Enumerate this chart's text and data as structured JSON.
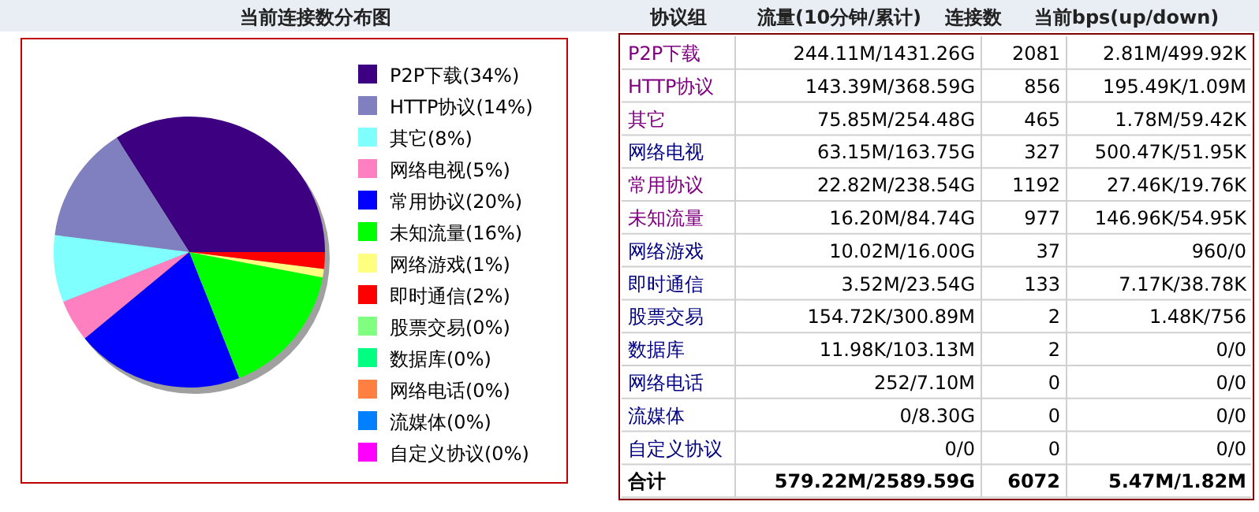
{
  "chart_data": [
    {
      "type": "pie",
      "title": "当前连接数分布图",
      "legend": "right",
      "categories": [
        "P2P下载(34%)",
        "HTTP协议(14%)",
        "其它(8%)",
        "网络电视(5%)",
        "常用协议(20%)",
        "未知流量(16%)",
        "网络游戏(1%)",
        "即时通信(2%)",
        "股票交易(0%)",
        "数据库(0%)",
        "网络电话(0%)",
        "流媒体(0%)",
        "自定义协议(0%)"
      ],
      "values": [
        34,
        14,
        8,
        5,
        20,
        16,
        1,
        2,
        0,
        0,
        0,
        0,
        0
      ],
      "colors": [
        "#3d0080",
        "#8080c0",
        "#80ffff",
        "#ff80c0",
        "#0000ff",
        "#00ff00",
        "#ffff80",
        "#ff0000",
        "#80ff80",
        "#00ff80",
        "#ff8040",
        "#0080ff",
        "#ff00ff"
      ]
    },
    {
      "type": "other",
      "categories": [
        "协议组",
        "流量(10分钟/累计)",
        "连接数",
        "当前bps(up/down)"
      ],
      "annotations": [
        "P2P下载",
        "244.11M/1431.26G",
        "2081",
        "2.81M/499.92K",
        "HTTP协议",
        "143.39M/368.59G",
        "856",
        "195.49K/1.09M",
        "其它",
        "75.85M/254.48G",
        "465",
        "1.78M/59.42K",
        "网络电视",
        "63.15M/163.75G",
        "327",
        "500.47K/51.95K",
        "常用协议",
        "22.82M/238.54G",
        "1192",
        "27.46K/19.76K",
        "未知流量",
        "16.20M/84.74G",
        "977",
        "146.96K/54.95K",
        "网络游戏",
        "10.02M/16.00G",
        "37",
        "960/0",
        "即时通信",
        "3.52M/23.54G",
        "133",
        "7.17K/38.78K",
        "股票交易",
        "154.72K/300.89M",
        "2",
        "1.48K/756",
        "数据库",
        "11.98K/103.13M",
        "2",
        "0/0",
        "网络电话",
        "252/7.10M",
        "0",
        "0/0",
        "流媒体",
        "0/8.30G",
        "0",
        "0/0",
        "自定义协议",
        "0/0",
        "0",
        "0/0",
        "合计",
        "579.22M/2589.59G",
        "6072",
        "5.47M/1.82M"
      ]
    }
  ]
}
